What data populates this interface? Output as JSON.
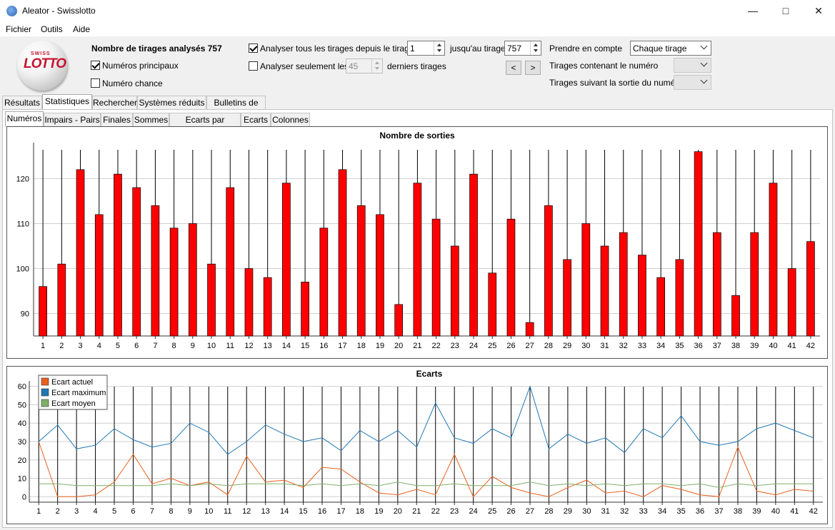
{
  "window": {
    "title": "Aleator - Swisslotto",
    "minimize_icon": "minimize-icon",
    "maximize_icon": "maximize-icon",
    "close_icon": "close-icon"
  },
  "menu": [
    {
      "label": "Fichier"
    },
    {
      "label": "Outils"
    },
    {
      "label": "Aide"
    }
  ],
  "logo": {
    "small": "SWISS",
    "big": "LOTTO"
  },
  "controls": {
    "analysed_label": "Nombre de tirages analysés 757",
    "main_numbers": {
      "label": "Numéros principaux",
      "checked": true
    },
    "chance_number": {
      "label": "Numéro chance",
      "checked": false
    },
    "analyse_all": {
      "label": "Analyser tous les tirages depuis le tirage",
      "checked": true,
      "from": "1",
      "to_label": "jusqu'au tirage",
      "to": "757"
    },
    "analyse_last": {
      "label": "Analyser seulement les",
      "checked": false,
      "count": "45",
      "suffix": "derniers tirages"
    },
    "prev_label": "<",
    "next_label": ">",
    "prendre_label": "Prendre en compte",
    "prendre_value": "Chaque tirage",
    "tirages_contenant_label": "Tirages contenant le numéro",
    "tirages_suivant_label": "Tirages suivant la sortie du numéro"
  },
  "main_tabs": [
    {
      "label": "Résultats"
    },
    {
      "label": "Statistiques"
    },
    {
      "label": "Rechercher"
    },
    {
      "label": "Systèmes réduits"
    },
    {
      "label": "Bulletins de jeu"
    }
  ],
  "active_main_tab": 1,
  "sub_tabs": [
    {
      "label": "Numéros"
    },
    {
      "label": "Impairs - Pairs"
    },
    {
      "label": "Finales"
    },
    {
      "label": "Sommes"
    },
    {
      "label": "Ecarts par numéro"
    },
    {
      "label": "Ecarts"
    },
    {
      "label": "Colonnes"
    }
  ],
  "active_sub_tab": 0,
  "chart_data": [
    {
      "type": "bar",
      "title": "Nombre de sorties",
      "categories": [
        "1",
        "2",
        "3",
        "4",
        "5",
        "6",
        "7",
        "8",
        "9",
        "10",
        "11",
        "12",
        "13",
        "14",
        "15",
        "16",
        "17",
        "18",
        "19",
        "20",
        "21",
        "22",
        "23",
        "24",
        "25",
        "26",
        "27",
        "28",
        "29",
        "30",
        "31",
        "32",
        "33",
        "34",
        "35",
        "36",
        "37",
        "38",
        "39",
        "40",
        "41",
        "42"
      ],
      "values": [
        96,
        101,
        122,
        112,
        121,
        118,
        114,
        109,
        110,
        101,
        118,
        100,
        98,
        119,
        97,
        109,
        122,
        114,
        112,
        92,
        119,
        111,
        105,
        121,
        99,
        111,
        88,
        114,
        102,
        110,
        105,
        108,
        103,
        98,
        102,
        126,
        108,
        94,
        108,
        119,
        100,
        106
      ],
      "yticks": [
        90,
        100,
        110,
        120
      ],
      "ylim": [
        85,
        128
      ],
      "color": "#ff0000",
      "grid": true
    },
    {
      "type": "line",
      "title": "Ecarts",
      "x": [
        "1",
        "2",
        "3",
        "4",
        "5",
        "6",
        "7",
        "8",
        "9",
        "10",
        "11",
        "12",
        "13",
        "14",
        "15",
        "16",
        "17",
        "18",
        "19",
        "20",
        "21",
        "22",
        "23",
        "24",
        "25",
        "26",
        "27",
        "28",
        "29",
        "30",
        "31",
        "32",
        "33",
        "34",
        "35",
        "36",
        "37",
        "38",
        "39",
        "40",
        "41",
        "42"
      ],
      "yticks": [
        0,
        10,
        20,
        30,
        40,
        50,
        60
      ],
      "ylim": [
        -3,
        63
      ],
      "legend_position": "top-left",
      "series": [
        {
          "name": "Ecart actuel",
          "color": "#e8601c",
          "values": [
            30,
            0,
            0,
            1,
            8,
            23,
            7,
            10,
            6,
            8,
            1,
            22,
            8,
            9,
            5,
            16,
            15,
            8,
            2,
            1,
            4,
            1,
            23,
            0,
            11,
            5,
            2,
            0,
            5,
            9,
            2,
            3,
            0,
            6,
            4,
            1,
            0,
            27,
            3,
            1,
            4,
            3
          ]
        },
        {
          "name": "Ecart maximum",
          "color": "#1f77b4",
          "values": [
            30,
            39,
            26,
            28,
            37,
            31,
            27,
            29,
            40,
            35,
            23,
            30,
            39,
            34,
            30,
            32,
            25,
            36,
            30,
            36,
            27,
            51,
            32,
            29,
            37,
            32,
            60,
            26,
            34,
            29,
            32,
            24,
            37,
            32,
            44,
            30,
            28,
            30,
            37,
            40,
            36,
            32
          ]
        },
        {
          "name": "Ecart moyen",
          "color": "#7fb069",
          "values": [
            7,
            7,
            6,
            6,
            6,
            6,
            6,
            7,
            6,
            7,
            6,
            7,
            7,
            7,
            6,
            7,
            6,
            7,
            6,
            8,
            6,
            6,
            7,
            6,
            6,
            6,
            8,
            6,
            7,
            6,
            7,
            6,
            7,
            7,
            6,
            7,
            5,
            7,
            6,
            7,
            7,
            7
          ]
        }
      ]
    }
  ]
}
